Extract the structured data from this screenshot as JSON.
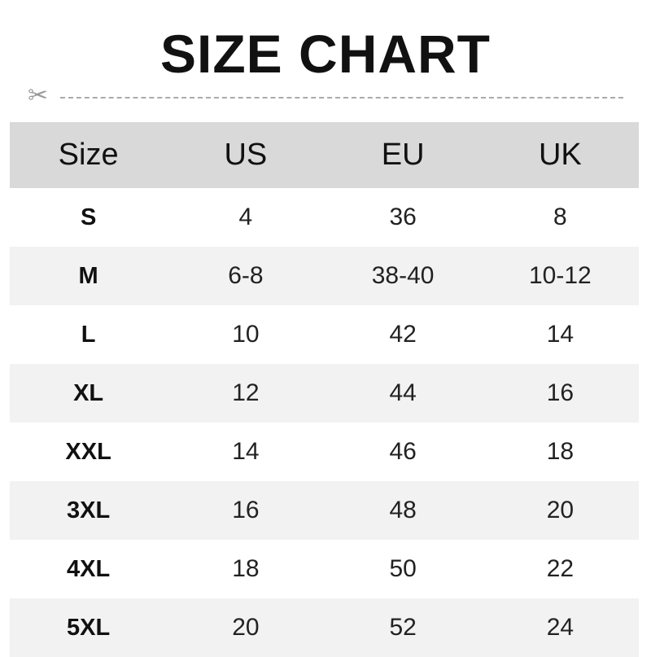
{
  "title": "SIZE CHART",
  "headers": [
    "Size",
    "US",
    "EU",
    "UK"
  ],
  "rows": [
    [
      "S",
      "4",
      "36",
      "8"
    ],
    [
      "M",
      "6-8",
      "38-40",
      "10-12"
    ],
    [
      "L",
      "10",
      "42",
      "14"
    ],
    [
      "XL",
      "12",
      "44",
      "16"
    ],
    [
      "XXL",
      "14",
      "46",
      "18"
    ],
    [
      "3XL",
      "16",
      "48",
      "20"
    ],
    [
      "4XL",
      "18",
      "50",
      "22"
    ],
    [
      "5XL",
      "20",
      "52",
      "24"
    ]
  ]
}
